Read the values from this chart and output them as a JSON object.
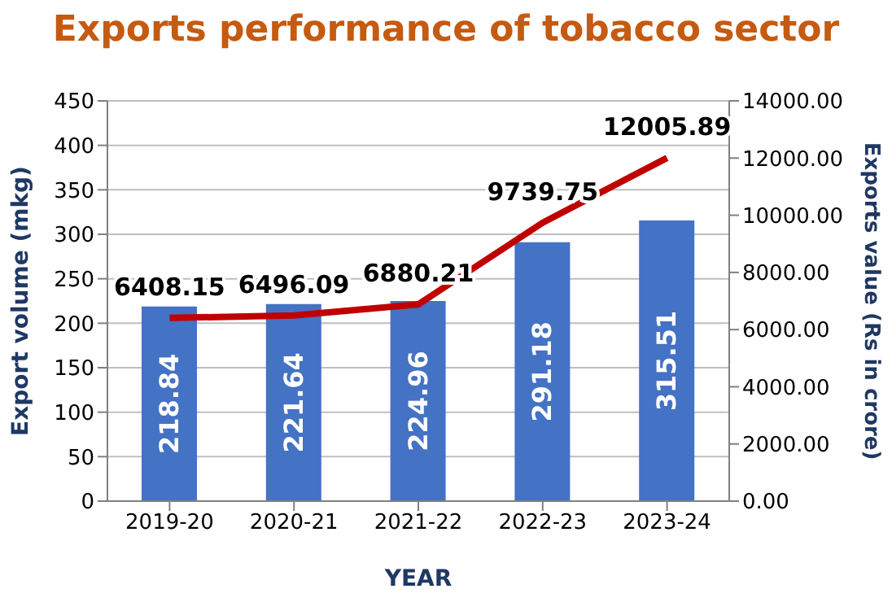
{
  "chart_data": {
    "type": "bar",
    "title": "Exports performance of tobacco sector",
    "xlabel": "YEAR",
    "ylabel": "Export volume (mkg)",
    "y2label": "Exports value (Rs in crore)",
    "categories": [
      "2019-20",
      "2020-21",
      "2021-22",
      "2022-23",
      "2023-24"
    ],
    "series": [
      {
        "color": "#4472c4",
        "values": [
          218.84,
          221.64,
          224.96,
          291.18,
          315.51
        ]
      },
      {
        "type": "line",
        "axis": "y2",
        "color": "#c00000",
        "values": [
          6408.15,
          6496.09,
          6880.21,
          9739.75,
          12005.89
        ]
      }
    ],
    "ylim": [
      0,
      450
    ],
    "yticks": [
      0,
      50,
      100,
      150,
      200,
      250,
      300,
      350,
      400,
      450
    ],
    "y2lim": [
      0,
      14000
    ],
    "y2ticks": [
      {
        "value": 0,
        "label": "0.00"
      },
      {
        "value": 2000,
        "label": "2000.00"
      },
      {
        "value": 4000,
        "label": "4000.00"
      },
      {
        "value": 6000,
        "label": "6000.00"
      },
      {
        "value": 8000,
        "label": "8000.00"
      },
      {
        "value": 10000,
        "label": "10000.00"
      },
      {
        "value": 12000,
        "label": "12000.00"
      },
      {
        "value": 14000,
        "label": "14000.00"
      }
    ],
    "grid": "y",
    "legend": false,
    "data_labels": true,
    "marker": "none"
  }
}
